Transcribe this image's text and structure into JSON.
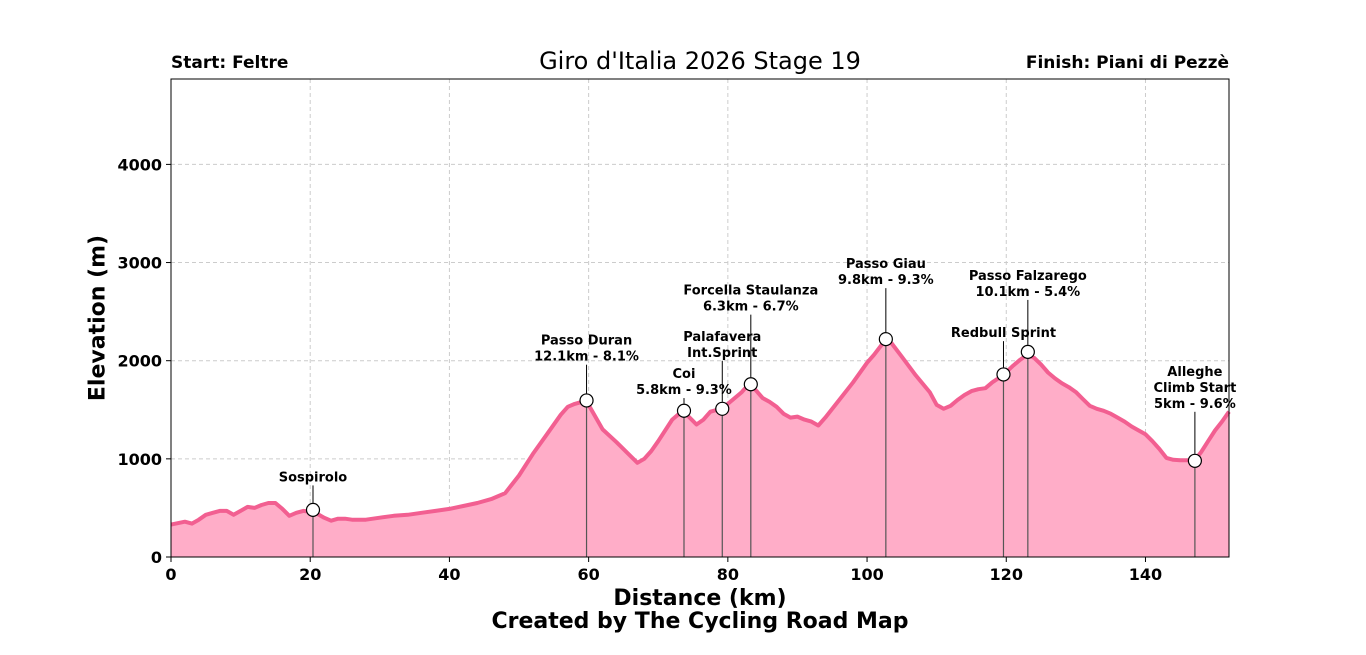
{
  "chart_data": {
    "type": "area",
    "title": "Giro d'Italia 2026 Stage 19",
    "start_label": "Start: Feltre",
    "finish_label": "Finish: Piani di Pezzè",
    "xlabel": "Distance (km)",
    "ylabel": "Elevation (m)",
    "credit": "Created by The Cycling Road Map",
    "xlim": [
      0,
      152
    ],
    "ylim": [
      0,
      4870
    ],
    "xticks": [
      0,
      20,
      40,
      60,
      80,
      100,
      120,
      140
    ],
    "yticks": [
      0,
      1000,
      2000,
      3000,
      4000
    ],
    "grid": true,
    "fill_color": "#ffadc8",
    "line_color": "#f25f91",
    "profile": {
      "x": [
        0,
        2,
        3,
        4,
        5,
        6,
        7,
        8,
        9,
        10,
        11,
        12,
        13,
        14,
        15,
        16,
        17,
        18,
        19,
        20,
        21,
        22,
        23,
        24,
        25,
        26,
        28,
        30,
        32,
        34,
        36,
        38,
        40,
        42,
        44,
        46,
        48,
        50,
        52,
        54,
        56,
        57,
        58,
        59,
        60,
        62,
        64,
        66,
        67,
        68,
        69,
        70,
        72,
        73.5,
        74.5,
        75.5,
        76.5,
        77.5,
        79,
        80,
        81,
        82,
        83,
        84,
        85,
        86,
        87,
        88,
        89,
        90,
        91,
        92,
        93,
        94,
        96,
        98,
        100,
        101,
        102.5,
        103.5,
        105,
        107,
        109,
        110,
        111,
        112,
        113,
        114,
        115,
        116,
        117,
        118,
        119.5,
        121,
        122,
        123,
        124,
        125,
        126,
        127,
        128,
        129,
        130,
        131,
        132,
        133,
        134,
        135,
        136,
        137,
        138,
        139,
        140,
        141,
        142,
        143,
        144,
        145,
        146,
        147,
        148,
        149,
        150,
        151,
        152
      ],
      "y": [
        330,
        360,
        340,
        380,
        430,
        450,
        470,
        470,
        430,
        470,
        510,
        500,
        530,
        550,
        550,
        490,
        420,
        450,
        470,
        460,
        440,
        400,
        370,
        390,
        390,
        380,
        380,
        400,
        420,
        430,
        450,
        470,
        490,
        520,
        550,
        590,
        650,
        830,
        1050,
        1250,
        1450,
        1530,
        1560,
        1580,
        1550,
        1300,
        1170,
        1030,
        960,
        1000,
        1080,
        1180,
        1400,
        1490,
        1420,
        1350,
        1400,
        1480,
        1510,
        1560,
        1620,
        1680,
        1760,
        1700,
        1620,
        1580,
        1530,
        1460,
        1420,
        1430,
        1400,
        1380,
        1340,
        1420,
        1600,
        1780,
        1980,
        2060,
        2200,
        2180,
        2040,
        1850,
        1680,
        1550,
        1510,
        1540,
        1600,
        1650,
        1690,
        1710,
        1720,
        1780,
        1850,
        1950,
        2010,
        2060,
        2030,
        1960,
        1880,
        1820,
        1770,
        1730,
        1680,
        1610,
        1540,
        1510,
        1490,
        1460,
        1420,
        1380,
        1330,
        1290,
        1250,
        1180,
        1100,
        1010,
        990,
        985,
        985,
        980,
        1070,
        1180,
        1290,
        1380,
        1480
      ]
    },
    "markers": [
      {
        "name": "Sospirolo",
        "lines": [
          "Sospirolo"
        ],
        "x": 20.4,
        "y": 480,
        "label_y": 770
      },
      {
        "name": "Passo Duran",
        "lines": [
          "Passo Duran",
          "12.1km - 8.1%"
        ],
        "x": 59.7,
        "y": 1595,
        "label_y": 2000
      },
      {
        "name": "Coi",
        "lines": [
          "Coi",
          "5.8km - 9.3%"
        ],
        "x": 73.7,
        "y": 1490,
        "label_y": 1660
      },
      {
        "name": "Palafavera Int.Sprint",
        "lines": [
          "Palafavera",
          "Int.Sprint"
        ],
        "x": 79.2,
        "y": 1510,
        "label_y": 2040
      },
      {
        "name": "Forcella Staulanza",
        "lines": [
          "Forcella Staulanza",
          "6.3km - 6.7%"
        ],
        "x": 83.3,
        "y": 1760,
        "label_y": 2510
      },
      {
        "name": "Passo Giau",
        "lines": [
          "Passo Giau",
          "9.8km - 9.3%"
        ],
        "x": 102.7,
        "y": 2220,
        "label_y": 2780
      },
      {
        "name": "Redbull Sprint",
        "lines": [
          "Redbull Sprint"
        ],
        "x": 119.6,
        "y": 1860,
        "label_y": 2240
      },
      {
        "name": "Passo Falzarego",
        "lines": [
          "Passo Falzarego",
          "10.1km - 5.4%"
        ],
        "x": 123.1,
        "y": 2090,
        "label_y": 2660
      },
      {
        "name": "Alleghe Climb Start",
        "lines": [
          "Alleghe",
          "Climb Start",
          "5km - 9.6%"
        ],
        "x": 147.1,
        "y": 980,
        "label_y": 1520
      }
    ]
  }
}
